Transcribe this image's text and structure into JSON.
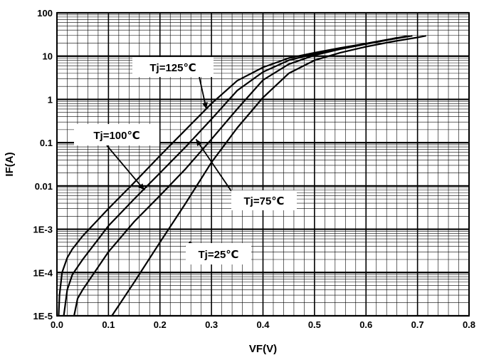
{
  "chart_data": {
    "type": "line",
    "title": "",
    "xlabel": "VF(V)",
    "ylabel": "IF(A)",
    "y_scale": "log",
    "xlim": [
      0.0,
      0.8
    ],
    "ylim": [
      1e-05,
      100
    ],
    "grid": true,
    "x_ticks": [
      {
        "value": 0.0,
        "label": "0.0"
      },
      {
        "value": 0.1,
        "label": "0.1"
      },
      {
        "value": 0.2,
        "label": "0.2"
      },
      {
        "value": 0.3,
        "label": "0.3"
      },
      {
        "value": 0.4,
        "label": "0.4"
      },
      {
        "value": 0.5,
        "label": "0.5"
      },
      {
        "value": 0.6,
        "label": "0.6"
      },
      {
        "value": 0.7,
        "label": "0.7"
      },
      {
        "value": 0.8,
        "label": "0.8"
      }
    ],
    "y_ticks": [
      {
        "value": 100,
        "label": "100"
      },
      {
        "value": 10,
        "label": "10"
      },
      {
        "value": 1,
        "label": "1"
      },
      {
        "value": 0.1,
        "label": "0.1"
      },
      {
        "value": 0.01,
        "label": "0.01"
      },
      {
        "value": 0.001,
        "label": "1E-3"
      },
      {
        "value": 0.0001,
        "label": "1E-4"
      },
      {
        "value": 1e-05,
        "label": "1E-5"
      }
    ],
    "series": [
      {
        "name": "Tj=125℃",
        "color": "#000000",
        "points": [
          [
            0.0033,
            1e-05
          ],
          [
            0.005,
            3e-05
          ],
          [
            0.01,
            0.0001
          ],
          [
            0.02,
            0.00022
          ],
          [
            0.03,
            0.00035
          ],
          [
            0.05,
            0.0007
          ],
          [
            0.1,
            0.003
          ],
          [
            0.15,
            0.012
          ],
          [
            0.2,
            0.05
          ],
          [
            0.25,
            0.2
          ],
          [
            0.3,
            0.8
          ],
          [
            0.35,
            2.7
          ],
          [
            0.4,
            5.5
          ],
          [
            0.45,
            9.0
          ],
          [
            0.5,
            12.0
          ],
          [
            0.55,
            15.5
          ],
          [
            0.6,
            19.5
          ],
          [
            0.65,
            25.0
          ],
          [
            0.66,
            26.5
          ]
        ]
      },
      {
        "name": "Tj=100℃",
        "color": "#000000",
        "points": [
          [
            0.0133,
            1e-05
          ],
          [
            0.02,
            4e-05
          ],
          [
            0.03,
            9e-05
          ],
          [
            0.05,
            0.0002
          ],
          [
            0.1,
            0.0012
          ],
          [
            0.15,
            0.005
          ],
          [
            0.2,
            0.02
          ],
          [
            0.25,
            0.08
          ],
          [
            0.3,
            0.35
          ],
          [
            0.35,
            1.6
          ],
          [
            0.4,
            4.3
          ],
          [
            0.45,
            8.0
          ],
          [
            0.5,
            11.3
          ],
          [
            0.55,
            15.0
          ],
          [
            0.6,
            19.5
          ],
          [
            0.65,
            25.0
          ],
          [
            0.68,
            29.0
          ]
        ]
      },
      {
        "name": "Tj=75℃",
        "color": "#000000",
        "points": [
          [
            0.0333,
            1e-05
          ],
          [
            0.04,
            2.5e-05
          ],
          [
            0.05,
            4e-05
          ],
          [
            0.1,
            0.0003
          ],
          [
            0.15,
            0.0015
          ],
          [
            0.2,
            0.006
          ],
          [
            0.25,
            0.025
          ],
          [
            0.3,
            0.12
          ],
          [
            0.35,
            0.6
          ],
          [
            0.4,
            2.8
          ],
          [
            0.45,
            6.5
          ],
          [
            0.5,
            10.5
          ],
          [
            0.55,
            14.5
          ],
          [
            0.6,
            19.0
          ],
          [
            0.65,
            24.5
          ],
          [
            0.69,
            29.5
          ]
        ]
      },
      {
        "name": "Tj=25℃",
        "color": "#000000",
        "points": [
          [
            0.1067,
            1e-05
          ],
          [
            0.15,
            6e-05
          ],
          [
            0.2,
            0.0005
          ],
          [
            0.25,
            0.004
          ],
          [
            0.3,
            0.035
          ],
          [
            0.35,
            0.22
          ],
          [
            0.4,
            1.1
          ],
          [
            0.45,
            4.0
          ],
          [
            0.5,
            8.0
          ],
          [
            0.55,
            12.0
          ],
          [
            0.6,
            16.5
          ],
          [
            0.65,
            21.5
          ],
          [
            0.7,
            27.0
          ],
          [
            0.7167,
            29.5
          ]
        ]
      }
    ],
    "annotations": [
      {
        "series": 0,
        "text": "Tj=125℃",
        "arrow_to": [
          0.29,
          0.6
        ]
      },
      {
        "series": 1,
        "text": "Tj=100℃",
        "arrow_to": [
          0.17,
          0.008
        ]
      },
      {
        "series": 2,
        "text": "Tj=75℃",
        "arrow_to": [
          0.27,
          0.12
        ]
      },
      {
        "series": 3,
        "text": "Tj=25℃",
        "arrow_to": [
          0.25,
          0.0004
        ]
      }
    ]
  }
}
